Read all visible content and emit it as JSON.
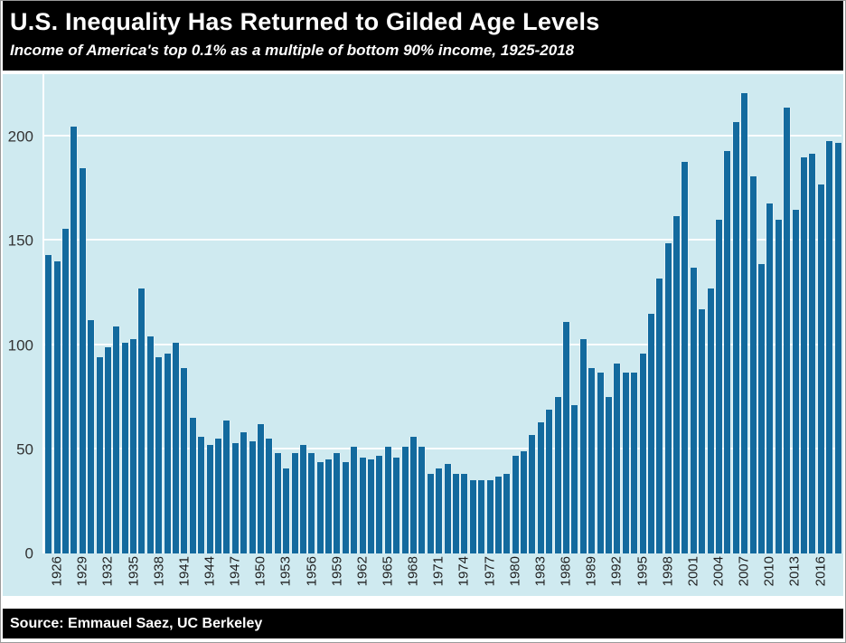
{
  "colors": {
    "bar": "#136a9e",
    "plot_background": "#cfeaf0",
    "band_background": "#000000",
    "band_text": "#ffffff",
    "gridline": "#ffffff",
    "y_tick_text": "#333333",
    "x_tick_text": "#1f1f1f",
    "page_border": "#9a9a9a"
  },
  "chart_data": {
    "type": "bar",
    "title": "U.S. Inequality Has Returned to Gilded Age Levels",
    "subtitle": "Income of America's top 0.1% as a multiple of bottom 90% income, 1925-2018",
    "source": "Source: Emmauel Saez, UC Berkeley",
    "xlabel": "",
    "ylabel": "",
    "ylim": [
      0,
      230
    ],
    "yticks": [
      0,
      50,
      100,
      150,
      200
    ],
    "xticks": [
      1926,
      1929,
      1932,
      1935,
      1938,
      1941,
      1944,
      1947,
      1950,
      1953,
      1956,
      1959,
      1962,
      1965,
      1968,
      1971,
      1974,
      1977,
      1980,
      1983,
      1986,
      1989,
      1992,
      1995,
      1998,
      2001,
      2004,
      2007,
      2010,
      2013,
      2016
    ],
    "grid": "horizontal-white",
    "legend": "none",
    "categories": [
      1925,
      1926,
      1927,
      1928,
      1929,
      1930,
      1931,
      1932,
      1933,
      1934,
      1935,
      1936,
      1937,
      1938,
      1939,
      1940,
      1941,
      1942,
      1943,
      1944,
      1945,
      1946,
      1947,
      1948,
      1949,
      1950,
      1951,
      1952,
      1953,
      1954,
      1955,
      1956,
      1957,
      1958,
      1959,
      1960,
      1961,
      1962,
      1963,
      1964,
      1965,
      1966,
      1967,
      1968,
      1969,
      1970,
      1971,
      1972,
      1973,
      1974,
      1975,
      1976,
      1977,
      1978,
      1979,
      1980,
      1981,
      1982,
      1983,
      1984,
      1985,
      1986,
      1987,
      1988,
      1989,
      1990,
      1991,
      1992,
      1993,
      1994,
      1995,
      1996,
      1997,
      1998,
      1999,
      2000,
      2001,
      2002,
      2003,
      2004,
      2005,
      2006,
      2007,
      2008,
      2009,
      2010,
      2011,
      2012,
      2013,
      2014,
      2015,
      2016,
      2017,
      2018
    ],
    "values": [
      143,
      140,
      156,
      205,
      185,
      112,
      94,
      99,
      109,
      101,
      103,
      127,
      104,
      94,
      96,
      101,
      89,
      65,
      56,
      52,
      55,
      64,
      53,
      58,
      54,
      62,
      55,
      48,
      41,
      48,
      52,
      48,
      44,
      45,
      48,
      44,
      51,
      46,
      45,
      47,
      51,
      46,
      51,
      56,
      51,
      38,
      41,
      43,
      38,
      38,
      35,
      35,
      35,
      37,
      38,
      47,
      49,
      57,
      63,
      69,
      75,
      111,
      71,
      103,
      89,
      87,
      75,
      91,
      87,
      87,
      96,
      115,
      132,
      149,
      162,
      188,
      137,
      117,
      127,
      160,
      193,
      207,
      221,
      181,
      139,
      168,
      160,
      214,
      165,
      190,
      192,
      177,
      198,
      197
    ]
  }
}
